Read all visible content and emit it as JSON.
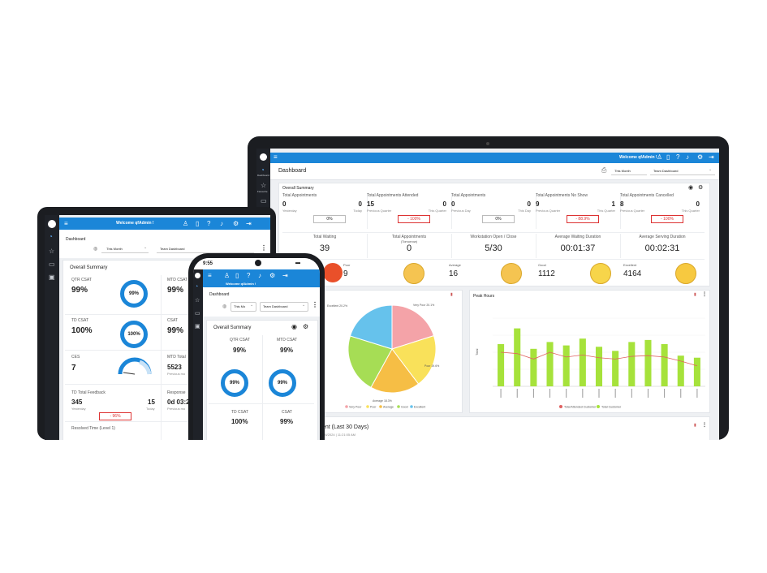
{
  "laptop": {
    "welcome": "Welcome qfAdmin !",
    "page_title": "Dashboard",
    "sidebar": [
      "Dashboard",
      "Favourite"
    ],
    "filter_period": "This Month",
    "filter_view": "Team Dashboard",
    "overall_summary": "Overall Summary",
    "kpis": [
      {
        "title": "Total Appointments",
        "left_val": "0",
        "left_sub": "Yesterday",
        "right_val": "0",
        "right_sub": "Today",
        "pct": "0%",
        "neg": false
      },
      {
        "title": "Total Appointments Attended",
        "left_val": "15",
        "left_sub": "Previous Quarter",
        "right_val": "0",
        "right_sub": "This Quarter",
        "pct": "- 100%",
        "neg": true
      },
      {
        "title": "Total Appointments",
        "left_val": "0",
        "left_sub": "Previous Day",
        "right_val": "0",
        "right_sub": "This Day",
        "pct": "0%",
        "neg": false
      },
      {
        "title": "Total Appointments No Show",
        "left_val": "9",
        "left_sub": "Previous Quarter",
        "right_val": "1",
        "right_sub": "This Quarter",
        "pct": "- 88.9%",
        "neg": true
      },
      {
        "title": "Total Appointments Cancelled",
        "left_val": "8",
        "left_sub": "Previous Quarter",
        "right_val": "0",
        "right_sub": "This Quarter",
        "pct": "- 100%",
        "neg": true
      }
    ],
    "stats": [
      {
        "title": "Total Waiting",
        "value": "39",
        "sub": ""
      },
      {
        "title": "Total Appointments",
        "value": "0",
        "sub": "(Tomorrow)"
      },
      {
        "title": "Workstation Open / Close",
        "value": "5/30",
        "sub": ""
      },
      {
        "title": "Average Waiting Duration",
        "value": "00:01:37",
        "sub": ""
      },
      {
        "title": "Average Serving Duration",
        "value": "00:02:31",
        "sub": ""
      }
    ],
    "feedback": [
      {
        "label": "Poor",
        "value": "9",
        "color": "#f5c451"
      },
      {
        "label": "Average",
        "value": "16",
        "color": "#f5c451"
      },
      {
        "label": "Good",
        "value": "1112",
        "color": "#f7d54a"
      },
      {
        "label": "Excellent",
        "value": "4164",
        "color": "#f7c940"
      }
    ],
    "pie": {
      "labels": [
        "Excellent",
        "Very Poor",
        "Poor",
        "Average",
        "Good"
      ],
      "legend": [
        "Very Poor",
        "Poor",
        "Average",
        "Good",
        "Excellent"
      ],
      "slices": [
        {
          "name": "Very Poor",
          "value": 20.1,
          "color": "#f4a3a8"
        },
        {
          "name": "Poor",
          "value": 19.6,
          "color": "#f9e15a"
        },
        {
          "name": "Average",
          "value": 18.3,
          "color": "#f6be45"
        },
        {
          "name": "Good",
          "value": 21.8,
          "color": "#a6dd55"
        },
        {
          "name": "Excellent",
          "value": 20.2,
          "color": "#66c2ec"
        }
      ],
      "lbl_excellent": "Excellent 20.2%",
      "lbl_verypoor": "Very Poor 20.1%",
      "lbl_poor": "Poor 19.6%",
      "lbl_average": "Average 18.3%"
    },
    "peak": {
      "title": "Peak Hours",
      "ylabel": "Total",
      "legend_line": "Total Attended Customer",
      "legend_bar": "Total Customer",
      "bars": [
        62,
        85,
        55,
        65,
        60,
        70,
        58,
        52,
        65,
        68,
        62,
        45,
        42
      ],
      "line": [
        50,
        48,
        40,
        50,
        43,
        46,
        42,
        40,
        44,
        45,
        43,
        37,
        30
      ],
      "bar_color": "#a6e23b",
      "line_color": "#e06060"
    },
    "bottom_title": "ent (Last 30 Days)",
    "bottom_sub": "/05/2024 | 11:21:05 AM"
  },
  "tablet": {
    "welcome": "Welcome qfAdmin !",
    "page_title": "Dashboard",
    "filter_period": "This Month",
    "filter_view": "Team Dashboard",
    "overall_summary": "Overall Summary",
    "qtr_label": "QTR CSAT",
    "qtr_value": "99%",
    "qtr_ring": "99%",
    "mtd_label": "MTD CSAT",
    "mtd_value": "99%",
    "td_label": "TD CSAT",
    "td_value": "100%",
    "td_ring": "100%",
    "csat_label": "CSAT",
    "csat_value": "99%",
    "ces_label": "CES",
    "ces_value": "7",
    "mtd_total_label": "MTD Total",
    "mtd_total_value": "5523",
    "mtd_total_sub": "Previous mo",
    "td_total_label": "TD Total Feedback",
    "td_total_left": "345",
    "td_total_left_sub": "Yesterday",
    "td_total_right": "15",
    "td_total_right_sub": "Today",
    "td_total_pct": "- 96%",
    "resp_label": "Response",
    "resp_value": "0d 03:2",
    "resp_sub": "Previous mo",
    "resolved_label": "Resolved Time (Level 1)"
  },
  "phone": {
    "time": "9:55",
    "welcome": "Welcome qfAdmin !",
    "page_title": "Dashboard",
    "filter_period": "This Mo",
    "filter_view": "Team Dashboard",
    "overall_summary": "Overall Summary",
    "qtr_label": "QTR CSAT",
    "qtr_value": "99%",
    "qtr_ring": "99%",
    "mtd_label": "MTD CSAT",
    "mtd_value": "99%",
    "mtd_ring": "99%",
    "td_label": "TD CSAT",
    "td_value": "100%",
    "csat_label": "CSAT",
    "csat_value": "99%"
  }
}
